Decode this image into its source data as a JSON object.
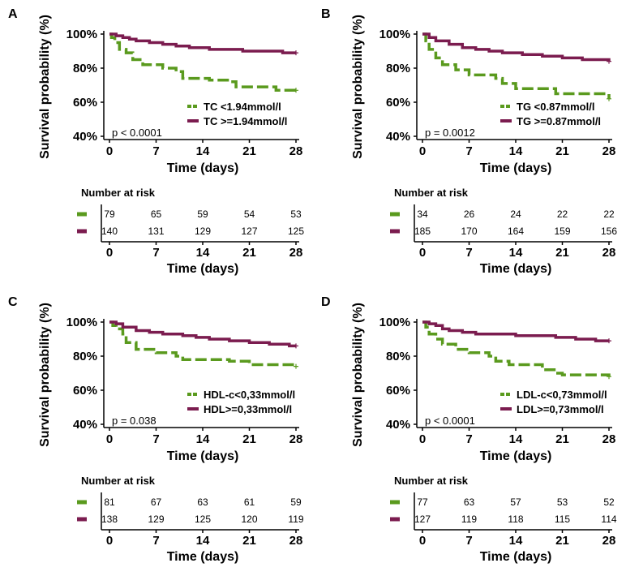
{
  "colors": {
    "green": "#5a9a1e",
    "maroon": "#7b1c4f"
  },
  "chart_data": [
    {
      "type": "line",
      "panel": "A",
      "ylabel": "Survival probability (%)",
      "xlabel": "Time (days)",
      "x_ticks": [
        0,
        7,
        14,
        21,
        28
      ],
      "y_ticks": [
        "40%",
        "60%",
        "80%",
        "100%"
      ],
      "xlim": [
        0,
        28
      ],
      "ylim": [
        40,
        100
      ],
      "legend_position": "bottom-right",
      "p_value": "p < 0.0001",
      "series": [
        {
          "name": "TC <1.94mmol/l",
          "color": "#5a9a1e",
          "dashed": true,
          "x": [
            0,
            0.3,
            0.8,
            1.5,
            2.5,
            3.5,
            5,
            8,
            10,
            11,
            12,
            15,
            18,
            19,
            22,
            25,
            28
          ],
          "y": [
            100,
            98,
            95,
            91,
            89,
            85,
            82,
            80,
            78,
            74,
            74,
            73,
            72,
            69,
            69,
            67,
            67
          ]
        },
        {
          "name": "TC >=1.94mmol/l",
          "color": "#7b1c4f",
          "dashed": false,
          "x": [
            0,
            1,
            2,
            3,
            4,
            6,
            8,
            10,
            12,
            15,
            18,
            20,
            23,
            26,
            28
          ],
          "y": [
            100,
            99,
            98,
            97,
            96,
            95,
            94,
            93,
            92,
            91,
            91,
            90,
            90,
            89,
            89
          ]
        }
      ],
      "risk_table": {
        "title": "Number at risk",
        "rows": [
          {
            "color": "#5a9a1e",
            "values": [
              "79",
              "65",
              "59",
              "54",
              "53"
            ]
          },
          {
            "color": "#7b1c4f",
            "values": [
              "140",
              "131",
              "129",
              "127",
              "125"
            ]
          }
        ],
        "xlabel": "Time (days)"
      }
    },
    {
      "type": "line",
      "panel": "B",
      "ylabel": "Survival probability (%)",
      "xlabel": "Time (days)",
      "x_ticks": [
        0,
        7,
        14,
        21,
        28
      ],
      "y_ticks": [
        "40%",
        "60%",
        "80%",
        "100%"
      ],
      "xlim": [
        0,
        28
      ],
      "ylim": [
        40,
        100
      ],
      "legend_position": "bottom-right",
      "p_value": "p = 0.0012",
      "series": [
        {
          "name": "TG <0.87mmol/l",
          "color": "#5a9a1e",
          "dashed": true,
          "x": [
            0,
            0.5,
            1,
            2,
            3,
            5,
            7,
            11,
            12,
            14,
            19,
            20,
            27.5,
            28
          ],
          "y": [
            100,
            96,
            91,
            86,
            82,
            79,
            76,
            74,
            71,
            68,
            68,
            65,
            65,
            62
          ]
        },
        {
          "name": "TG >=0.87mmol/l",
          "color": "#7b1c4f",
          "dashed": false,
          "x": [
            0,
            1,
            2,
            4,
            6,
            8,
            10,
            12,
            15,
            18,
            21,
            24,
            27,
            28
          ],
          "y": [
            100,
            98,
            96,
            94,
            92,
            91,
            90,
            89,
            88,
            87,
            86,
            85,
            85,
            84
          ]
        }
      ],
      "risk_table": {
        "title": "Number at risk",
        "rows": [
          {
            "color": "#5a9a1e",
            "values": [
              "34",
              "26",
              "24",
              "22",
              "22"
            ]
          },
          {
            "color": "#7b1c4f",
            "values": [
              "185",
              "170",
              "164",
              "159",
              "156"
            ]
          }
        ],
        "xlabel": "Time (days)"
      }
    },
    {
      "type": "line",
      "panel": "C",
      "ylabel": "Survival probability (%)",
      "xlabel": "Time (days)",
      "x_ticks": [
        0,
        7,
        14,
        21,
        28
      ],
      "y_ticks": [
        "40%",
        "60%",
        "80%",
        "100%"
      ],
      "xlim": [
        0,
        28
      ],
      "ylim": [
        40,
        100
      ],
      "legend_position": "bottom-right",
      "p_value": "p = 0.038",
      "series": [
        {
          "name": "HDL-c<0,33mmol/l",
          "color": "#5a9a1e",
          "dashed": true,
          "x": [
            0,
            0.5,
            1,
            2,
            2.5,
            4,
            7,
            10,
            11,
            18,
            21,
            28
          ],
          "y": [
            100,
            98,
            96,
            93,
            88,
            84,
            82,
            80,
            78,
            77,
            75,
            74
          ]
        },
        {
          "name": "HDL>=0,33mmol/l",
          "color": "#7b1c4f",
          "dashed": false,
          "x": [
            0,
            1,
            2,
            4,
            6,
            8,
            11,
            13,
            15,
            18,
            21,
            24,
            27,
            28
          ],
          "y": [
            100,
            99,
            97,
            95,
            94,
            93,
            92,
            91,
            90,
            89,
            88,
            87,
            86,
            86
          ]
        }
      ],
      "risk_table": {
        "title": "Number at risk",
        "rows": [
          {
            "color": "#5a9a1e",
            "values": [
              "81",
              "67",
              "63",
              "61",
              "59"
            ]
          },
          {
            "color": "#7b1c4f",
            "values": [
              "138",
              "129",
              "125",
              "120",
              "119"
            ]
          }
        ],
        "xlabel": "Time (days)"
      }
    },
    {
      "type": "line",
      "panel": "D",
      "ylabel": "Survival probability (%)",
      "xlabel": "Time (days)",
      "x_ticks": [
        0,
        7,
        14,
        21,
        28
      ],
      "y_ticks": [
        "40%",
        "60%",
        "80%",
        "100%"
      ],
      "xlim": [
        0,
        28
      ],
      "ylim": [
        40,
        100
      ],
      "legend_position": "bottom-right",
      "p_value": "p < 0.0001",
      "series": [
        {
          "name": "LDL-c<0,73mmol/l",
          "color": "#5a9a1e",
          "dashed": true,
          "x": [
            0,
            0.5,
            1,
            2,
            3,
            5,
            7,
            10,
            11,
            13,
            18,
            20,
            21,
            28
          ],
          "y": [
            100,
            97,
            93,
            90,
            87,
            84,
            82,
            80,
            77,
            75,
            72,
            70,
            69,
            68
          ]
        },
        {
          "name": "LDL>=0,73mmol/l",
          "color": "#7b1c4f",
          "dashed": false,
          "x": [
            0,
            1,
            2,
            3,
            4,
            6,
            8,
            11,
            14,
            17,
            20,
            23,
            26,
            28
          ],
          "y": [
            100,
            99,
            98,
            96,
            95,
            94,
            93,
            93,
            92,
            92,
            91,
            90,
            89,
            89
          ]
        }
      ],
      "risk_table": {
        "title": "Number at risk",
        "rows": [
          {
            "color": "#5a9a1e",
            "values": [
              "77",
              "63",
              "57",
              "53",
              "52"
            ]
          },
          {
            "color": "#7b1c4f",
            "values": [
              "127",
              "119",
              "118",
              "115",
              "114"
            ]
          }
        ],
        "xlabel": "Time (days)"
      }
    }
  ]
}
